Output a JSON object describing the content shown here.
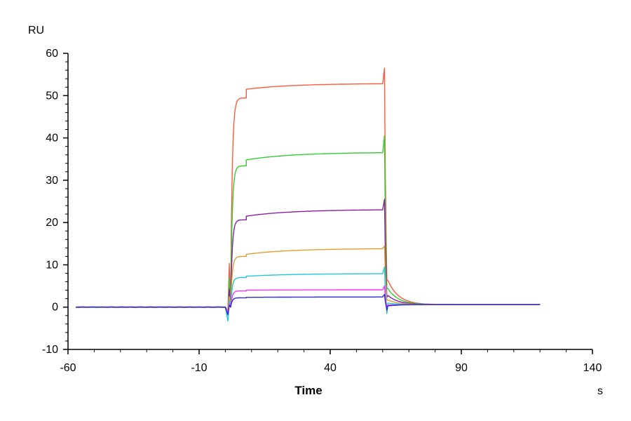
{
  "chart_data": {
    "type": "line",
    "xlabel": "Time",
    "x_unit": "s",
    "y_unit": "RU",
    "xlim": [
      -60,
      140
    ],
    "ylim": [
      -10,
      60
    ],
    "x_ticks": [
      "-60",
      "-10",
      "40",
      "90",
      "140"
    ],
    "y_ticks": [
      "-10",
      "0",
      "10",
      "20",
      "30",
      "40",
      "50",
      "60"
    ],
    "grid": false,
    "legend": "none",
    "association_start": 2,
    "dissociation_start": 61,
    "series": [
      {
        "color": "#ff5a3c",
        "plateau_start": 51.5,
        "plateau_end": 52.8,
        "spike": 56.5,
        "dip": 0
      },
      {
        "color": "#33cc33",
        "plateau_start": 34.8,
        "plateau_end": 36.5,
        "spike": 40.5,
        "dip": 0
      },
      {
        "color": "#8a1fa6",
        "plateau_start": 21.5,
        "plateau_end": 23.0,
        "spike": 25.5,
        "dip": -0.5
      },
      {
        "color": "#e0a030",
        "plateau_start": 12.5,
        "plateau_end": 13.8,
        "spike": 14.5,
        "dip": 0
      },
      {
        "color": "#22c8d8",
        "plateau_start": 7.3,
        "plateau_end": 7.9,
        "spike": 9.5,
        "dip": -2.5
      },
      {
        "color": "#ff33ff",
        "plateau_start": 4.0,
        "plateau_end": 4.1,
        "spike": 5.0,
        "dip": -0.5
      },
      {
        "color": "#2a2ad8",
        "plateau_start": 2.3,
        "plateau_end": 2.4,
        "spike": 3.0,
        "dip": -1.0
      }
    ]
  }
}
